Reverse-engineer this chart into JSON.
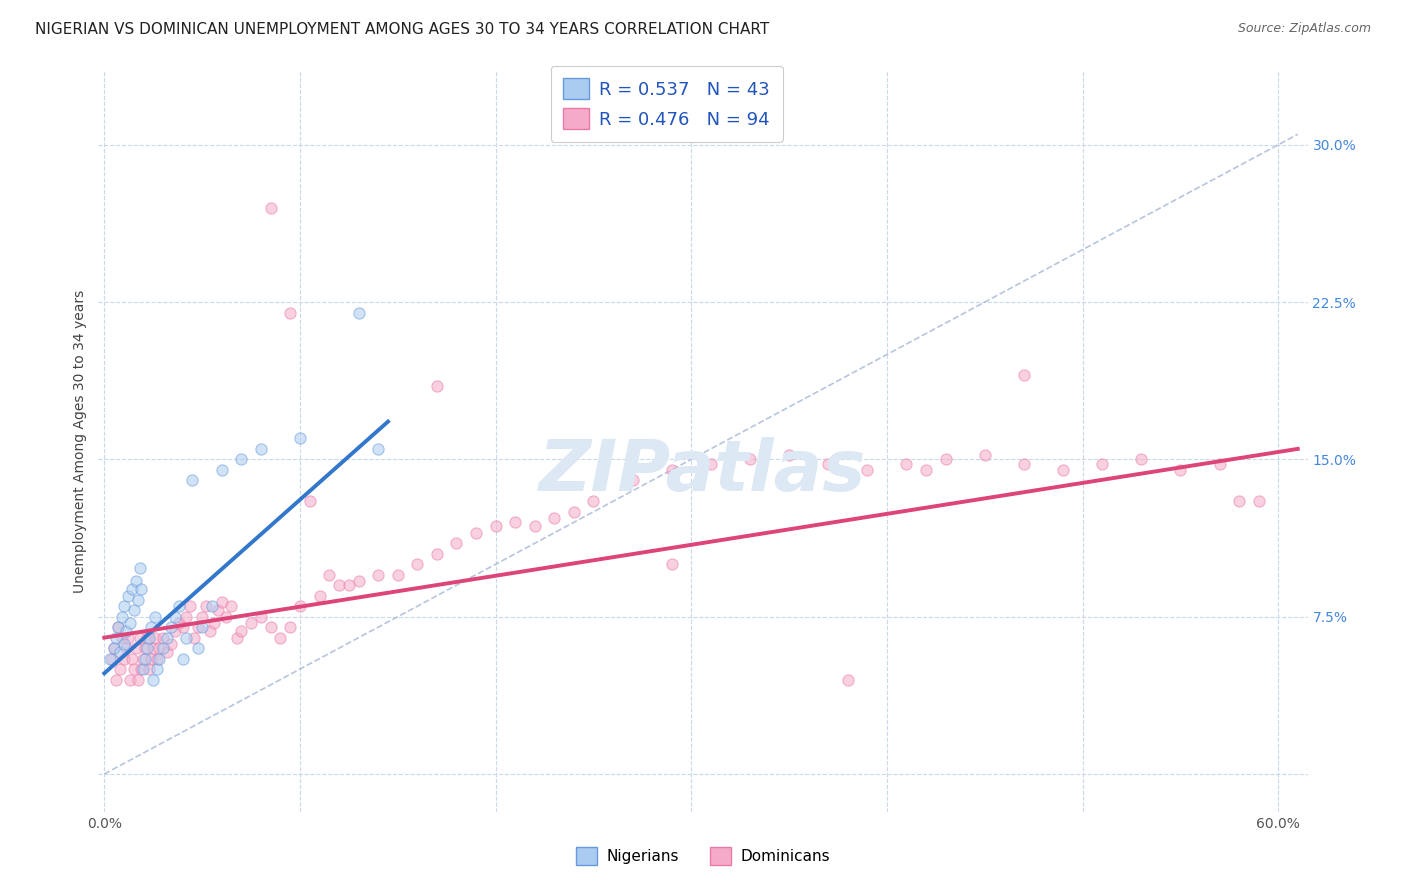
{
  "title": "NIGERIAN VS DOMINICAN UNEMPLOYMENT AMONG AGES 30 TO 34 YEARS CORRELATION CHART",
  "source": "Source: ZipAtlas.com",
  "ylabel": "Unemployment Among Ages 30 to 34 years",
  "xlim": [
    -0.003,
    0.615
  ],
  "ylim": [
    -0.018,
    0.335
  ],
  "xtick_positions": [
    0.0,
    0.1,
    0.2,
    0.3,
    0.4,
    0.5,
    0.6
  ],
  "xtick_labels": [
    "0.0%",
    "",
    "",
    "",
    "",
    "",
    "60.0%"
  ],
  "ytick_positions": [
    0.0,
    0.075,
    0.15,
    0.225,
    0.3
  ],
  "ytick_labels": [
    "",
    "7.5%",
    "15.0%",
    "22.5%",
    "30.0%"
  ],
  "legend_text1": "R = 0.537   N = 43",
  "legend_text2": "R = 0.476   N = 94",
  "nigerian_fill": "#aaccf0",
  "nigerian_edge": "#6699dd",
  "dominican_fill": "#f5aac8",
  "dominican_edge": "#e87aaa",
  "blue_line": "#3377cc",
  "pink_line": "#dd4477",
  "ref_line": "#aabbd8",
  "legend_text_color": "#2255bb",
  "watermark_color": "#dde8f5",
  "bg": "#ffffff",
  "grid_color": "#c8d8e8",
  "title_fontsize": 11,
  "tick_fontsize": 10,
  "legend_fontsize": 13,
  "label_fontsize": 10,
  "source_fontsize": 9,
  "marker_size": 65,
  "marker_alpha": 0.55,
  "nig_x": [
    0.003,
    0.005,
    0.006,
    0.007,
    0.008,
    0.009,
    0.01,
    0.01,
    0.011,
    0.012,
    0.013,
    0.014,
    0.015,
    0.016,
    0.017,
    0.018,
    0.019,
    0.02,
    0.021,
    0.022,
    0.023,
    0.024,
    0.025,
    0.026,
    0.027,
    0.028,
    0.03,
    0.032,
    0.034,
    0.036,
    0.038,
    0.04,
    0.042,
    0.045,
    0.048,
    0.05,
    0.055,
    0.06,
    0.07,
    0.08,
    0.1,
    0.13,
    0.14
  ],
  "nig_y": [
    0.055,
    0.06,
    0.065,
    0.07,
    0.058,
    0.075,
    0.062,
    0.08,
    0.068,
    0.085,
    0.072,
    0.088,
    0.078,
    0.092,
    0.083,
    0.098,
    0.088,
    0.05,
    0.055,
    0.06,
    0.065,
    0.07,
    0.045,
    0.075,
    0.05,
    0.055,
    0.06,
    0.065,
    0.07,
    0.075,
    0.08,
    0.055,
    0.065,
    0.14,
    0.06,
    0.07,
    0.08,
    0.145,
    0.15,
    0.155,
    0.16,
    0.22,
    0.155
  ],
  "dom_x": [
    0.004,
    0.005,
    0.006,
    0.007,
    0.008,
    0.009,
    0.01,
    0.011,
    0.012,
    0.013,
    0.014,
    0.015,
    0.016,
    0.017,
    0.018,
    0.019,
    0.02,
    0.021,
    0.022,
    0.023,
    0.024,
    0.025,
    0.026,
    0.027,
    0.028,
    0.03,
    0.032,
    0.034,
    0.036,
    0.038,
    0.04,
    0.042,
    0.044,
    0.046,
    0.048,
    0.05,
    0.052,
    0.054,
    0.056,
    0.058,
    0.06,
    0.062,
    0.065,
    0.068,
    0.07,
    0.075,
    0.08,
    0.085,
    0.09,
    0.095,
    0.1,
    0.11,
    0.12,
    0.13,
    0.14,
    0.15,
    0.16,
    0.17,
    0.18,
    0.19,
    0.2,
    0.21,
    0.22,
    0.23,
    0.24,
    0.25,
    0.27,
    0.29,
    0.31,
    0.33,
    0.35,
    0.37,
    0.39,
    0.41,
    0.43,
    0.45,
    0.47,
    0.49,
    0.51,
    0.53,
    0.55,
    0.57,
    0.59,
    0.085,
    0.17,
    0.29,
    0.38,
    0.42,
    0.47,
    0.58,
    0.095,
    0.105,
    0.115,
    0.125
  ],
  "dom_y": [
    0.055,
    0.06,
    0.045,
    0.07,
    0.05,
    0.065,
    0.055,
    0.06,
    0.065,
    0.045,
    0.055,
    0.05,
    0.06,
    0.045,
    0.065,
    0.05,
    0.055,
    0.06,
    0.065,
    0.05,
    0.055,
    0.06,
    0.065,
    0.055,
    0.06,
    0.065,
    0.058,
    0.062,
    0.068,
    0.072,
    0.07,
    0.075,
    0.08,
    0.065,
    0.07,
    0.075,
    0.08,
    0.068,
    0.072,
    0.078,
    0.082,
    0.075,
    0.08,
    0.065,
    0.068,
    0.072,
    0.075,
    0.07,
    0.065,
    0.07,
    0.08,
    0.085,
    0.09,
    0.092,
    0.095,
    0.095,
    0.1,
    0.105,
    0.11,
    0.115,
    0.118,
    0.12,
    0.118,
    0.122,
    0.125,
    0.13,
    0.14,
    0.145,
    0.148,
    0.15,
    0.152,
    0.148,
    0.145,
    0.148,
    0.15,
    0.152,
    0.148,
    0.145,
    0.148,
    0.15,
    0.145,
    0.148,
    0.13,
    0.27,
    0.185,
    0.1,
    0.045,
    0.145,
    0.19,
    0.13,
    0.22,
    0.13,
    0.095,
    0.09
  ],
  "nig_line_x": [
    0.0,
    0.145
  ],
  "nig_line_y": [
    0.048,
    0.168
  ],
  "dom_line_x": [
    0.0,
    0.61
  ],
  "dom_line_y": [
    0.065,
    0.155
  ],
  "ref_line_x": [
    0.0,
    0.61
  ],
  "ref_line_y": [
    0.0,
    0.305
  ]
}
